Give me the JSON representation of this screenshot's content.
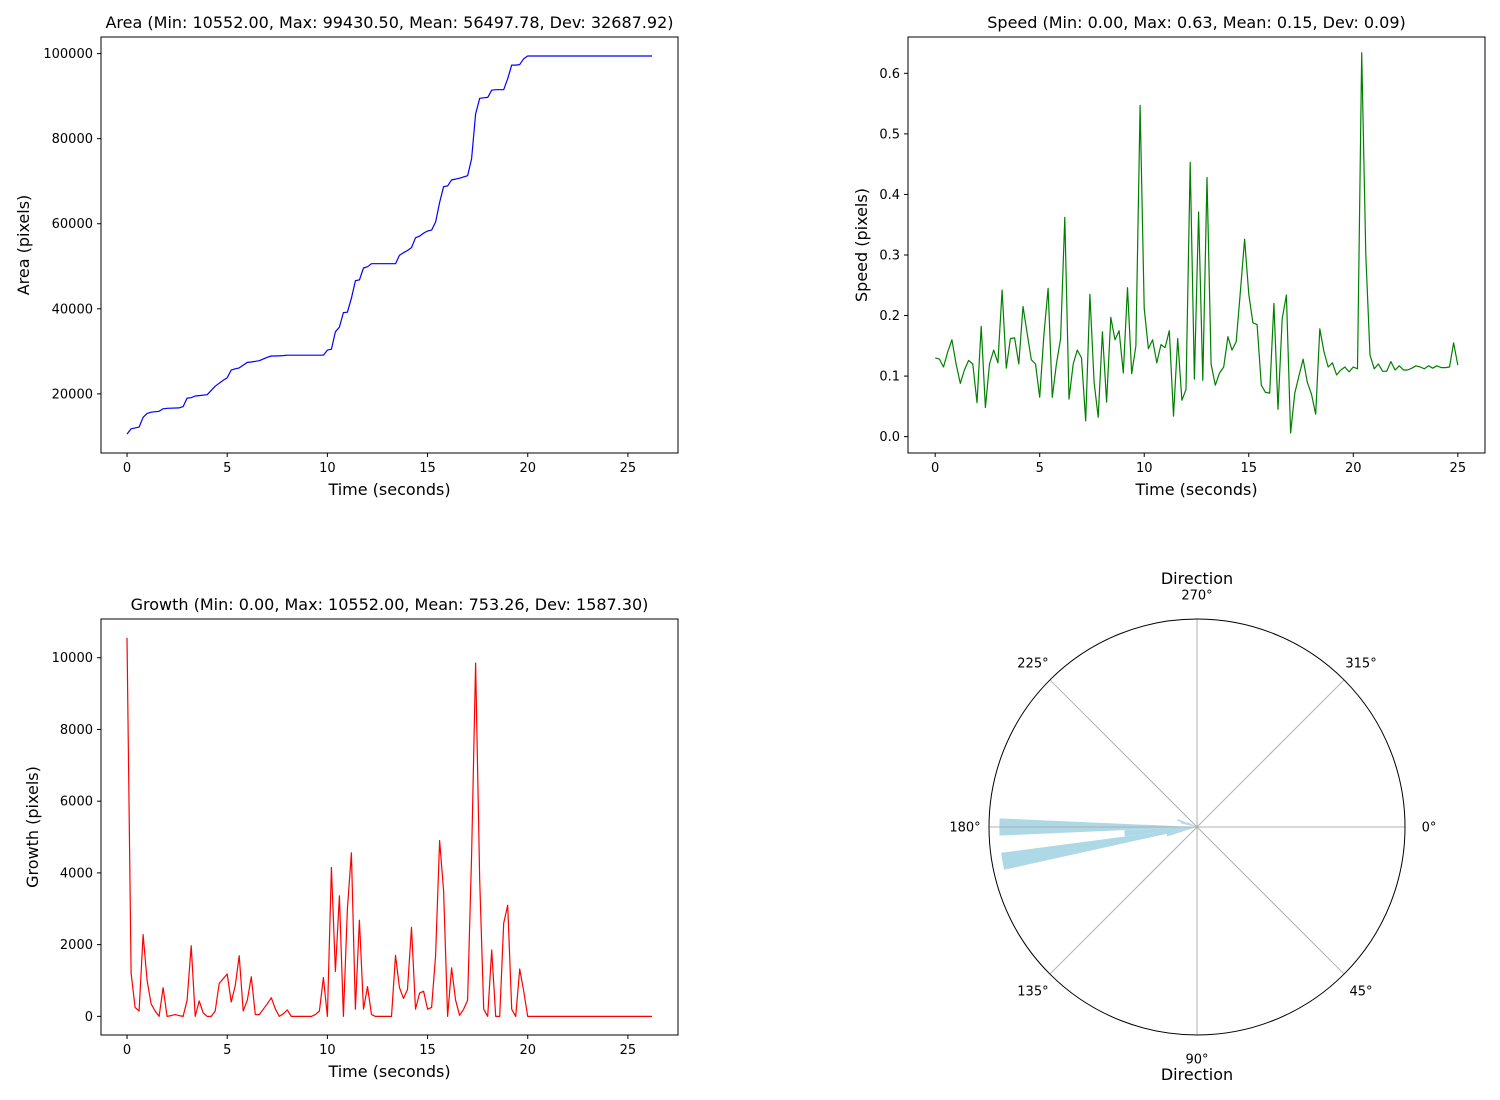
{
  "chart_data": [
    {
      "type": "line",
      "title": "Area (Min: 10552.00, Max: 99430.50, Mean: 56497.78, Dev: 32687.92)",
      "xlabel": "Time (seconds)",
      "ylabel": "Area (pixels)",
      "xlim": [
        -1.3,
        27.5
      ],
      "ylim": [
        6100,
        103900
      ],
      "xticks": [
        0,
        5,
        10,
        15,
        20,
        25
      ],
      "xtick_labels": [
        "0",
        "5",
        "10",
        "15",
        "20",
        "25"
      ],
      "yticks": [
        20000,
        40000,
        60000,
        80000,
        100000
      ],
      "ytick_labels": [
        "20000",
        "40000",
        "60000",
        "80000",
        "100000"
      ],
      "grid": false,
      "color": "#0000ff",
      "series": [
        {
          "x": [
            0,
            0.2,
            0.6,
            0.8,
            1,
            1.2,
            1.6,
            1.8,
            2,
            2.6,
            2.8,
            3,
            3.2,
            3.4,
            3.6,
            4,
            4.4,
            4.8,
            5,
            5.2,
            5.4,
            5.6,
            6,
            6.2,
            6.6,
            7,
            7.2,
            7.4,
            7.8,
            8,
            9.8,
            10,
            10.2,
            10.4,
            10.6,
            10.8,
            11,
            11.2,
            11.4,
            11.6,
            11.8,
            12,
            12.2,
            13.4,
            13.6,
            13.8,
            14,
            14.2,
            14.4,
            14.6,
            14.8,
            15,
            15.2,
            15.4,
            15.6,
            15.8,
            16,
            16.2,
            16.4,
            16.6,
            17,
            17.2,
            17.4,
            17.6,
            17.8,
            18,
            18.2,
            18.4,
            18.8,
            19,
            19.2,
            19.4,
            19.6,
            19.8,
            20,
            20.2,
            26.2
          ],
          "y": [
            10552,
            11800,
            12200,
            14500,
            15400,
            15700,
            15900,
            16500,
            16600,
            16700,
            17000,
            19000,
            19100,
            19500,
            19600,
            19800,
            21800,
            23200,
            23800,
            25600,
            25900,
            26100,
            27400,
            27500,
            27800,
            28600,
            28900,
            28900,
            29000,
            29100,
            29100,
            30300,
            30500,
            34600,
            35700,
            39100,
            39200,
            42500,
            46600,
            46800,
            49600,
            49900,
            50600,
            50600,
            52600,
            53200,
            53700,
            54400,
            56700,
            57100,
            57800,
            58300,
            58500,
            60400,
            65000,
            68700,
            68900,
            70300,
            70500,
            70700,
            71300,
            75300,
            85800,
            89500,
            89600,
            89700,
            91400,
            91500,
            91500,
            94100,
            97300,
            97300,
            97400,
            98800,
            99430.5,
            99430.5,
            99430.5
          ]
        }
      ]
    },
    {
      "type": "line",
      "title": "Speed (Min: 0.00, Max: 0.63, Mean: 0.15, Dev: 0.09)",
      "xlabel": "Time (seconds)",
      "ylabel": "Speed (pixels)",
      "xlim": [
        -1.3,
        26.3
      ],
      "ylim": [
        -0.027,
        0.66
      ],
      "xticks": [
        0,
        5,
        10,
        15,
        20,
        25
      ],
      "xtick_labels": [
        "0",
        "5",
        "10",
        "15",
        "20",
        "25"
      ],
      "yticks": [
        0.0,
        0.1,
        0.2,
        0.3,
        0.4,
        0.5,
        0.6
      ],
      "ytick_labels": [
        "0.0",
        "0.1",
        "0.2",
        "0.3",
        "0.4",
        "0.5",
        "0.6"
      ],
      "grid": false,
      "color": "#008000",
      "series": [
        {
          "x": [
            0,
            0.2,
            0.4,
            0.6,
            0.8,
            1.0,
            1.2,
            1.4,
            1.6,
            1.8,
            2.0,
            2.2,
            2.4,
            2.6,
            2.8,
            3.0,
            3.2,
            3.4,
            3.6,
            3.8,
            4.0,
            4.2,
            4.4,
            4.6,
            4.8,
            5.0,
            5.2,
            5.4,
            5.6,
            5.8,
            6.0,
            6.2,
            6.4,
            6.6,
            6.8,
            7.0,
            7.2,
            7.4,
            7.6,
            7.8,
            8.0,
            8.2,
            8.4,
            8.6,
            8.8,
            9.0,
            9.2,
            9.4,
            9.6,
            9.8,
            10.0,
            10.2,
            10.4,
            10.6,
            10.8,
            11.0,
            11.2,
            11.4,
            11.6,
            11.8,
            12.0,
            12.2,
            12.4,
            12.6,
            12.8,
            13.0,
            13.2,
            13.4,
            13.6,
            13.8,
            14.0,
            14.2,
            14.4,
            14.6,
            14.8,
            15.0,
            15.2,
            15.4,
            15.6,
            15.8,
            16.0,
            16.2,
            16.4,
            16.6,
            16.8,
            17.0,
            17.2,
            17.4,
            17.6,
            17.8,
            18.0,
            18.2,
            18.4,
            18.6,
            18.8,
            19.0,
            19.2,
            19.4,
            19.6,
            19.8,
            20.0,
            20.2,
            20.4,
            20.6,
            20.8,
            21.0,
            21.2,
            21.4,
            21.6,
            21.8,
            22.0,
            22.2,
            22.4,
            22.6,
            22.8,
            23.0,
            23.2,
            23.4,
            23.6,
            23.8,
            24.0,
            24.2,
            24.4,
            24.6,
            24.8,
            25.0
          ],
          "y": [
            0.13,
            0.128,
            0.115,
            0.14,
            0.16,
            0.12,
            0.088,
            0.11,
            0.126,
            0.12,
            0.056,
            0.182,
            0.048,
            0.12,
            0.143,
            0.122,
            0.242,
            0.113,
            0.162,
            0.163,
            0.12,
            0.215,
            0.17,
            0.127,
            0.12,
            0.065,
            0.168,
            0.245,
            0.065,
            0.12,
            0.162,
            0.362,
            0.062,
            0.12,
            0.143,
            0.13,
            0.026,
            0.235,
            0.09,
            0.032,
            0.173,
            0.057,
            0.197,
            0.16,
            0.175,
            0.105,
            0.246,
            0.104,
            0.15,
            0.547,
            0.212,
            0.145,
            0.16,
            0.122,
            0.152,
            0.147,
            0.175,
            0.034,
            0.162,
            0.06,
            0.078,
            0.453,
            0.095,
            0.371,
            0.093,
            0.428,
            0.12,
            0.085,
            0.105,
            0.115,
            0.165,
            0.143,
            0.157,
            0.24,
            0.326,
            0.235,
            0.188,
            0.185,
            0.085,
            0.073,
            0.072,
            0.22,
            0.045,
            0.195,
            0.234,
            0.006,
            0.072,
            0.1,
            0.128,
            0.09,
            0.07,
            0.037,
            0.178,
            0.14,
            0.115,
            0.122,
            0.102,
            0.11,
            0.115,
            0.107,
            0.115,
            0.112,
            0.634,
            0.3,
            0.135,
            0.112,
            0.12,
            0.108,
            0.108,
            0.124,
            0.11,
            0.117,
            0.11,
            0.11,
            0.113,
            0.117,
            0.115,
            0.112,
            0.117,
            0.113,
            0.117,
            0.114,
            0.114,
            0.115,
            0.155,
            0.118
          ]
        }
      ]
    },
    {
      "type": "line",
      "title": "Growth (Min: 0.00, Max: 10552.00, Mean: 753.26, Dev: 1587.30)",
      "xlabel": "Time (seconds)",
      "ylabel": "Growth (pixels)",
      "xlim": [
        -1.3,
        27.5
      ],
      "ylim": [
        -520,
        11080
      ],
      "xticks": [
        0,
        5,
        10,
        15,
        20,
        25
      ],
      "xtick_labels": [
        "0",
        "5",
        "10",
        "15",
        "20",
        "25"
      ],
      "yticks": [
        0,
        2000,
        4000,
        6000,
        8000,
        10000
      ],
      "ytick_labels": [
        "0",
        "2000",
        "4000",
        "6000",
        "8000",
        "10000"
      ],
      "grid": false,
      "color": "#ff0000",
      "series": [
        {
          "x": [
            0,
            0.2,
            0.4,
            0.6,
            0.8,
            1.0,
            1.2,
            1.4,
            1.6,
            1.8,
            2.0,
            2.2,
            2.4,
            2.6,
            2.8,
            3.0,
            3.2,
            3.4,
            3.6,
            3.8,
            4.0,
            4.2,
            4.4,
            4.6,
            4.8,
            5.0,
            5.2,
            5.4,
            5.6,
            5.8,
            6.0,
            6.2,
            6.4,
            6.6,
            6.8,
            7.0,
            7.2,
            7.4,
            7.6,
            7.8,
            8.0,
            8.2,
            8.4,
            8.6,
            8.8,
            9.0,
            9.2,
            9.4,
            9.6,
            9.8,
            10.0,
            10.2,
            10.4,
            10.6,
            10.8,
            11.0,
            11.2,
            11.4,
            11.6,
            11.8,
            12.0,
            12.2,
            12.4,
            12.6,
            12.8,
            13.0,
            13.2,
            13.4,
            13.6,
            13.8,
            14.0,
            14.2,
            14.4,
            14.6,
            14.8,
            15.0,
            15.2,
            15.4,
            15.6,
            15.8,
            16.0,
            16.2,
            16.4,
            16.6,
            16.8,
            17.0,
            17.2,
            17.4,
            17.6,
            17.8,
            18.0,
            18.2,
            18.4,
            18.6,
            18.8,
            19.0,
            19.2,
            19.4,
            19.6,
            19.8,
            20.0,
            20.2,
            26.2
          ],
          "y": [
            10552,
            1200,
            250,
            150,
            2280,
            1000,
            350,
            150,
            0,
            800,
            0,
            20,
            50,
            20,
            0,
            450,
            1970,
            0,
            430,
            100,
            0,
            0,
            150,
            920,
            1050,
            1180,
            400,
            850,
            1690,
            150,
            450,
            1100,
            50,
            50,
            200,
            350,
            520,
            210,
            0,
            70,
            180,
            0,
            0,
            0,
            0,
            0,
            0,
            50,
            150,
            1080,
            0,
            4150,
            1250,
            3360,
            0,
            3000,
            4560,
            200,
            2680,
            200,
            830,
            50,
            0,
            0,
            0,
            0,
            0,
            1700,
            800,
            500,
            750,
            2480,
            200,
            650,
            700,
            200,
            250,
            1700,
            4900,
            3500,
            0,
            1350,
            450,
            30,
            200,
            450,
            4500,
            9850,
            3800,
            200,
            0,
            1850,
            0,
            0,
            2600,
            3100,
            200,
            0,
            1320,
            700,
            0,
            0,
            0
          ]
        }
      ]
    },
    {
      "type": "bar",
      "subtype": "polar",
      "title": "Direction",
      "xlabel": "Direction",
      "angle_tick_labels": [
        "0°",
        "45°",
        "90°",
        "135°",
        "180°",
        "225°",
        "270°",
        "315°"
      ],
      "angle_direction": "clockwise",
      "zero_location": "east",
      "radial_tick_labels": "none",
      "color": "#add8e6",
      "categories_deg": [
        165,
        170,
        175,
        180,
        195,
        200,
        205
      ],
      "values": [
        0.15,
        0.95,
        0.35,
        0.95,
        0.08,
        0.1,
        0.05
      ]
    }
  ]
}
